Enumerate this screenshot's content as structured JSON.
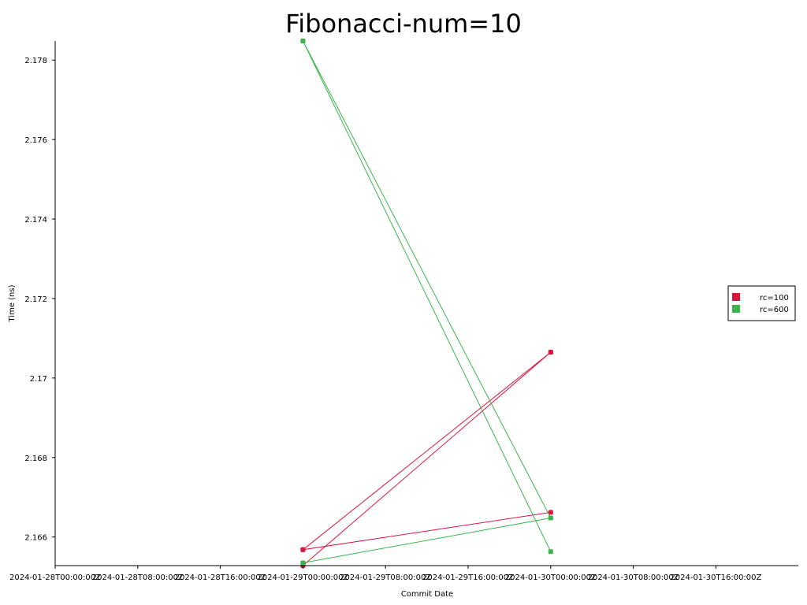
{
  "chart_data": {
    "type": "line",
    "title": "Fibonacci-num=10",
    "xlabel": "Commit Date",
    "ylabel": "Time (ns)",
    "xlim": [
      "2024-01-28T00:00:00Z",
      "2024-01-31T06:00:00Z"
    ],
    "ylim": [
      2.16528,
      2.17848
    ],
    "x_ticks": [
      "2024-01-28T00:00:00Z",
      "2024-01-28T08:00:00Z",
      "2024-01-28T16:00:00Z",
      "2024-01-29T00:00:00Z",
      "2024-01-29T08:00:00Z",
      "2024-01-29T16:00:00Z",
      "2024-01-30T00:00:00Z",
      "2024-01-30T08:00:00Z",
      "2024-01-30T16:00:00Z"
    ],
    "y_ticks": [
      "2.166",
      "2.168",
      "2.17",
      "2.172",
      "2.174",
      "2.176",
      "2.178"
    ],
    "grid": false,
    "legend_position": "right",
    "series": [
      {
        "name": "rc=100",
        "color": "#dc143c",
        "points": [
          {
            "x": "2024-01-29T00:00:00Z",
            "y": 2.16528
          },
          {
            "x": "2024-01-30T00:00:00Z",
            "y": 2.17065
          },
          {
            "x": "2024-01-29T00:00:00Z",
            "y": 2.16568
          },
          {
            "x": "2024-01-30T00:00:00Z",
            "y": 2.17065
          },
          {
            "x": "2024-01-29T00:00:00Z",
            "y": 2.16568
          },
          {
            "x": "2024-01-30T00:00:00Z",
            "y": 2.16662
          }
        ]
      },
      {
        "name": "rc=600",
        "color": "#39b54a",
        "points": [
          {
            "x": "2024-01-29T00:00:00Z",
            "y": 2.17848
          },
          {
            "x": "2024-01-30T00:00:00Z",
            "y": 2.16563
          },
          {
            "x": "2024-01-29T00:00:00Z",
            "y": 2.17848
          },
          {
            "x": "2024-01-30T00:00:00Z",
            "y": 2.16648
          },
          {
            "x": "2024-01-29T00:00:00Z",
            "y": 2.16535
          },
          {
            "x": "2024-01-30T00:00:00Z",
            "y": 2.16648
          }
        ]
      }
    ]
  }
}
